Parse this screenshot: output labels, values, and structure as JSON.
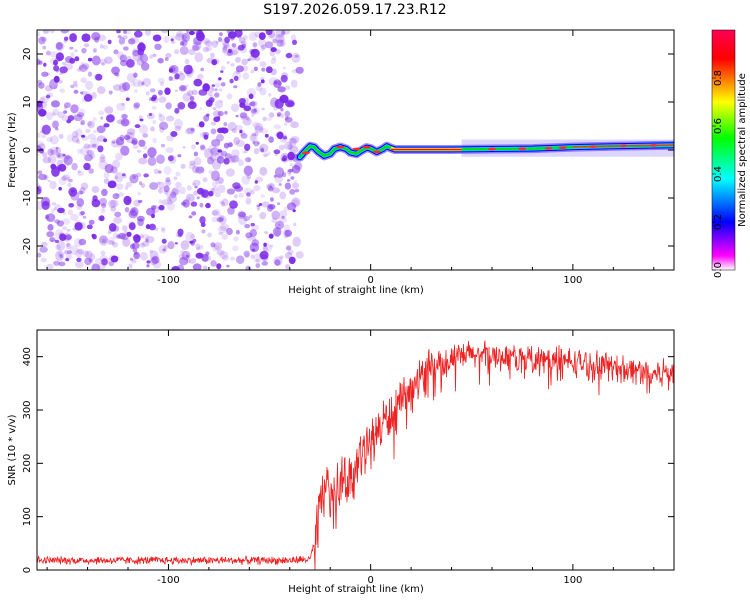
{
  "title": "S197.2026.059.17.23.R12",
  "colors": {
    "colormap": [
      "#ffffff",
      "#ff00ff",
      "#0000ff",
      "#00ffff",
      "#00ff00",
      "#ffff00",
      "#ff0000",
      "#ff0055"
    ],
    "noise": "#7a28e8",
    "snr_line": "#ee2222",
    "axis": "#000000"
  },
  "chart_data": [
    {
      "type": "heatmap",
      "title": "S197.2026.059.17.23.R12",
      "xlabel": "Height of straight line (km)",
      "ylabel": "Frequency (Hz)",
      "xlim": [
        -165,
        150
      ],
      "ylim": [
        -25,
        25
      ],
      "xticks": [
        -100,
        0,
        100
      ],
      "yticks": [
        20,
        10,
        0,
        -10,
        -20
      ],
      "noise_region_x": [
        -165,
        -35
      ],
      "signal_track": {
        "x": [
          -35,
          -33,
          -30,
          -28,
          -26,
          -23,
          -20,
          -18,
          -15,
          -12,
          -10,
          -7,
          -5,
          -2,
          0,
          3,
          6,
          8,
          10,
          12,
          20,
          40,
          60,
          80,
          100,
          120,
          150
        ],
        "y": [
          -1.5,
          -0.5,
          0.8,
          0.6,
          -0.3,
          -1.2,
          -0.8,
          0.2,
          0.6,
          0.2,
          -0.5,
          -0.8,
          -0.2,
          0.5,
          0.3,
          -0.4,
          0.2,
          0.8,
          0.4,
          0.1,
          0.1,
          0.1,
          0.2,
          0.3,
          0.6,
          0.8,
          1.0
        ]
      },
      "colorbar": {
        "label": "Normalized spectral amplitude",
        "min": 0,
        "max": 1,
        "ticks": [
          "0.0",
          "0.2",
          "0.4",
          "0.6",
          "0.8"
        ]
      }
    },
    {
      "type": "line",
      "xlabel": "Height of straight line (km)",
      "ylabel": "SNR (10 * v/v)",
      "xlim": [
        -165,
        150
      ],
      "ylim": [
        0,
        450
      ],
      "xticks": [
        -100,
        0,
        100
      ],
      "yticks": [
        0,
        100,
        200,
        300,
        400
      ],
      "series": [
        {
          "name": "SNR",
          "x": [
            -165,
            -100,
            -40,
            -30,
            -27,
            -25,
            -23,
            -20,
            -15,
            -10,
            -5,
            0,
            5,
            10,
            15,
            20,
            25,
            30,
            40,
            50,
            60,
            70,
            80,
            90,
            100,
            110,
            120,
            130,
            140,
            150
          ],
          "values": [
            18,
            18,
            18,
            20,
            60,
            130,
            150,
            150,
            165,
            175,
            210,
            240,
            270,
            290,
            310,
            340,
            360,
            385,
            395,
            405,
            400,
            400,
            395,
            395,
            390,
            385,
            380,
            375,
            370,
            372
          ]
        }
      ]
    }
  ]
}
